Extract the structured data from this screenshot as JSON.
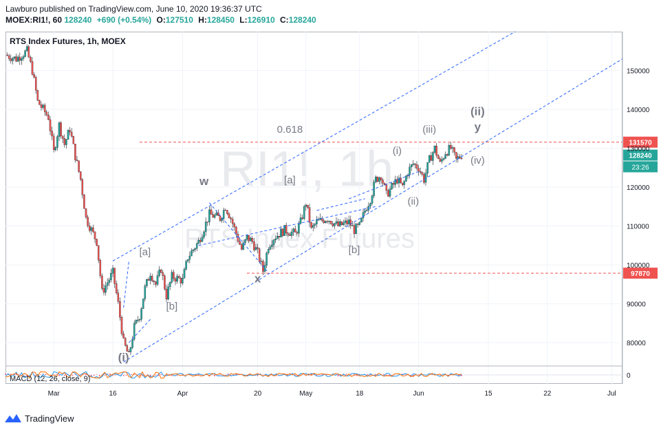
{
  "header": {
    "line1": "Lawburo published on TradingView.com, June 10, 2020 19:36:37 UTC",
    "symbol": "MOEX:RI1!, 60",
    "last": "128240",
    "change": "+690 (+0.54%)",
    "o_label": "O:",
    "o": "127510",
    "h_label": "H:",
    "h": "128450",
    "l_label": "L:",
    "l": "126910",
    "c_label": "C:",
    "c": "128240"
  },
  "chart_title": "RTS Index Futures, 1h, MOEX",
  "watermark": {
    "big": "RI1!, 1h",
    "small": "RTS Index Futures"
  },
  "footer": {
    "brand": "TradingView",
    "logo_icon": "tradingview-logo-icon"
  },
  "colors": {
    "up": "#26a69a",
    "down": "#ef5350",
    "line": "#2962ff",
    "hline": "#ef5350",
    "label": "#787b86"
  },
  "chart_data": {
    "type": "candlestick",
    "title": "RTS Index Futures, 1h, MOEX",
    "ylim": [
      74000,
      160000
    ],
    "xlim": [
      0,
      115
    ],
    "y_ticks": [
      80000,
      90000,
      100000,
      110000,
      120000,
      130000,
      140000,
      150000
    ],
    "x_ticks": [
      {
        "label": "Mar",
        "x": 9
      },
      {
        "label": "16",
        "x": 20
      },
      {
        "label": "Apr",
        "x": 33
      },
      {
        "label": "20",
        "x": 47
      },
      {
        "label": "May",
        "x": 56
      },
      {
        "label": "18",
        "x": 66
      },
      {
        "label": "Jun",
        "x": 77
      },
      {
        "label": "15",
        "x": 90
      },
      {
        "label": "22",
        "x": 101
      },
      {
        "label": "Jul",
        "x": 113
      }
    ],
    "price_path": [
      [
        0,
        154000
      ],
      [
        2,
        153000
      ],
      [
        4,
        155000
      ],
      [
        5,
        150000
      ],
      [
        6,
        142000
      ],
      [
        8,
        138000
      ],
      [
        9,
        129000
      ],
      [
        10,
        136000
      ],
      [
        11,
        131000
      ],
      [
        12,
        135000
      ],
      [
        13,
        128000
      ],
      [
        14,
        122000
      ],
      [
        15,
        112000
      ],
      [
        17,
        106000
      ],
      [
        18,
        93000
      ],
      [
        20,
        98000
      ],
      [
        21,
        90000
      ],
      [
        22,
        80000
      ],
      [
        23,
        76500
      ],
      [
        24,
        84000
      ],
      [
        25,
        87000
      ],
      [
        26,
        94000
      ],
      [
        27,
        98000
      ],
      [
        28,
        95000
      ],
      [
        29,
        99000
      ],
      [
        30,
        92000
      ],
      [
        31,
        97000
      ],
      [
        33,
        96000
      ],
      [
        34,
        102000
      ],
      [
        36,
        106000
      ],
      [
        38,
        113000
      ],
      [
        40,
        112000
      ],
      [
        41,
        115000
      ],
      [
        42,
        112000
      ],
      [
        43,
        108000
      ],
      [
        44,
        104000
      ],
      [
        45,
        107000
      ],
      [
        46,
        106000
      ],
      [
        47,
        103000
      ],
      [
        48,
        98500
      ],
      [
        49,
        105000
      ],
      [
        50,
        107000
      ],
      [
        52,
        109000
      ],
      [
        54,
        108000
      ],
      [
        55,
        111000
      ],
      [
        56,
        116000
      ],
      [
        57,
        109000
      ],
      [
        58,
        111000
      ],
      [
        60,
        112000
      ],
      [
        62,
        110000
      ],
      [
        64,
        111000
      ],
      [
        65,
        109000
      ],
      [
        66,
        110000
      ],
      [
        67,
        114000
      ],
      [
        68,
        117000
      ],
      [
        69,
        122000
      ],
      [
        70,
        123000
      ],
      [
        71,
        118000
      ],
      [
        72,
        120000
      ],
      [
        73,
        122000
      ],
      [
        74,
        120000
      ],
      [
        75,
        124000
      ],
      [
        76,
        126000
      ],
      [
        77,
        125000
      ],
      [
        78,
        122000
      ],
      [
        79,
        127000
      ],
      [
        80,
        130000
      ],
      [
        81,
        126000
      ],
      [
        82,
        129000
      ],
      [
        83,
        130000
      ],
      [
        84,
        127000
      ],
      [
        85,
        128240
      ]
    ],
    "last_price": 128240,
    "price_label": "128240",
    "timer_label": "23:26",
    "h_levels": [
      {
        "value": 131570,
        "label": "131570",
        "x_from": 25
      },
      {
        "value": 97870,
        "label": "97870",
        "x_from": 45
      }
    ],
    "trend_lines": [
      {
        "x1": 20,
        "y1": 101000,
        "x2": 95,
        "y2": 160000
      },
      {
        "x1": 22,
        "y1": 75000,
        "x2": 115,
        "y2": 153000
      },
      {
        "x1": 36,
        "y1": 105000,
        "x2": 69,
        "y2": 115000
      },
      {
        "x1": 38,
        "y1": 116000,
        "x2": 49,
        "y2": 98000
      },
      {
        "x1": 64,
        "y1": 117000,
        "x2": 77,
        "y2": 124000
      },
      {
        "x1": 58,
        "y1": 114000,
        "x2": 67,
        "y2": 117000
      },
      {
        "x1": 22,
        "y1": 89000,
        "x2": 23,
        "y2": 101000
      },
      {
        "x1": 23,
        "y1": 80000,
        "x2": 27,
        "y2": 86000
      }
    ],
    "wave_labels": [
      {
        "text": "(i)",
        "x": 22,
        "y": 75200,
        "bold": true
      },
      {
        "text": "[a]",
        "x": 26,
        "y": 102500,
        "bold": false
      },
      {
        "text": "[b]",
        "x": 31,
        "y": 88500,
        "bold": false
      },
      {
        "text": "w",
        "x": 37,
        "y": 120500,
        "bold": true
      },
      {
        "text": "x",
        "x": 47,
        "y": 95500,
        "bold": true
      },
      {
        "text": "0.618",
        "x": 53,
        "y": 134000,
        "bold": false
      },
      {
        "text": "[a]",
        "x": 53,
        "y": 121000,
        "bold": false
      },
      {
        "text": "[b]",
        "x": 65,
        "y": 103000,
        "bold": false
      },
      {
        "text": "(i)",
        "x": 73,
        "y": 128500,
        "bold": false
      },
      {
        "text": "(ii)",
        "x": 76,
        "y": 115500,
        "bold": false
      },
      {
        "text": "(iii)",
        "x": 79,
        "y": 134000,
        "bold": false
      },
      {
        "text": "(iv)",
        "x": 88,
        "y": 126000,
        "bold": false
      },
      {
        "text": "(ii)",
        "x": 88,
        "y": 138500,
        "bold": true
      },
      {
        "text": "y",
        "x": 88,
        "y": 134500,
        "bold": true
      }
    ],
    "macd": {
      "label": "MACD (12, 26, close, 9)",
      "zero_label": "0"
    }
  }
}
